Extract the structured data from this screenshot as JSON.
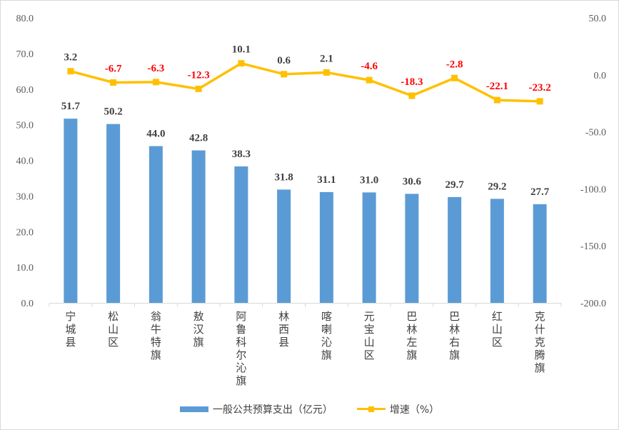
{
  "chart_data": {
    "type": "bar+line",
    "categories": [
      "宁城县",
      "松山区",
      "翁牛特旗",
      "敖汉旗",
      "阿鲁科尔沁旗",
      "林西县",
      "喀喇沁旗",
      "元宝山区",
      "巴林左旗",
      "巴林右旗",
      "红山区",
      "克什克腾旗"
    ],
    "series": [
      {
        "name": "一般公共预算支出（亿元）",
        "type": "bar",
        "axis": "left",
        "color": "#5b9bd5",
        "values": [
          51.7,
          50.2,
          44.0,
          42.8,
          38.3,
          31.8,
          31.1,
          31.0,
          30.6,
          29.7,
          29.2,
          27.7
        ],
        "labels": [
          "51.7",
          "50.2",
          "44.0",
          "42.8",
          "38.3",
          "31.8",
          "31.1",
          "31.0",
          "30.6",
          "29.7",
          "29.2",
          "27.7"
        ]
      },
      {
        "name": "增速（%）",
        "type": "line",
        "axis": "right",
        "color": "#ffc000",
        "values": [
          3.2,
          -6.7,
          -6.3,
          -12.3,
          10.1,
          0.6,
          2.1,
          -4.6,
          -18.3,
          -2.8,
          -22.1,
          -23.2
        ],
        "labels": [
          "3.2",
          "-6.7",
          "-6.3",
          "-12.3",
          "10.1",
          "0.6",
          "2.1",
          "-4.6",
          "-18.3",
          "-2.8",
          "-22.1",
          "-23.2"
        ]
      }
    ],
    "y_left": {
      "range": [
        0,
        80
      ],
      "ticks": [
        "0.0",
        "10.0",
        "20.0",
        "30.0",
        "40.0",
        "50.0",
        "60.0",
        "70.0",
        "80.0"
      ]
    },
    "y_right": {
      "range": [
        -200,
        50
      ],
      "ticks": [
        "-200.0",
        "-150.0",
        "-100.0",
        "-50.0",
        "0.0",
        "50.0"
      ]
    },
    "grid": false,
    "legend": "bottom",
    "colors": {
      "positive_label": "#404040",
      "negative_label": "#ff0000",
      "axis_text": "#595959"
    }
  }
}
